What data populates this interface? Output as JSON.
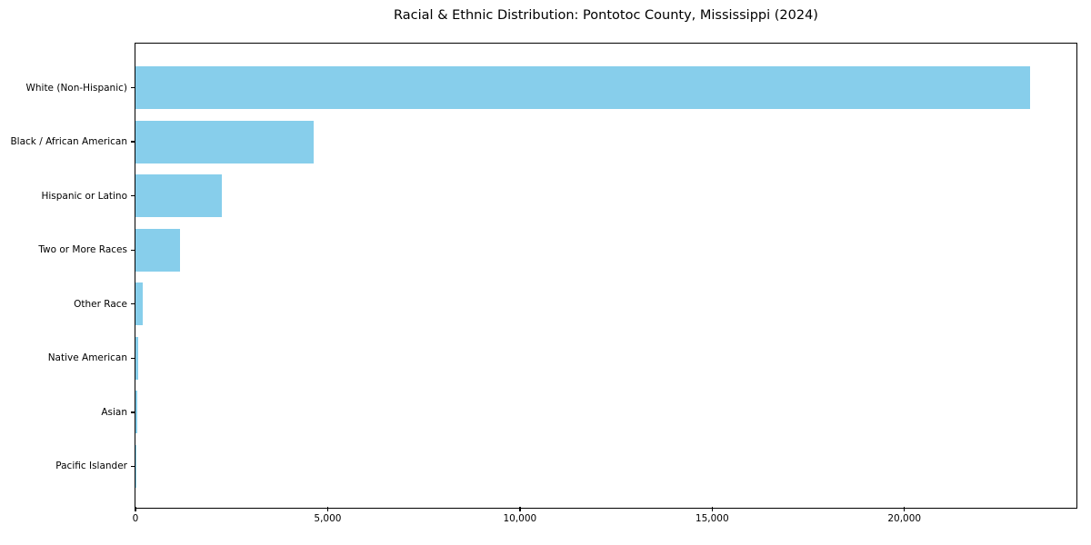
{
  "page": {
    "background": "#ffffff",
    "text_color": "#000000"
  },
  "chart_data": {
    "type": "bar",
    "orientation": "horizontal",
    "title": "Racial & Ethnic Distribution: Pontotoc County, Mississippi (2024)",
    "categories": [
      "White (Non-Hispanic)",
      "Black / African American",
      "Hispanic or Latino",
      "Two or More Races",
      "Other Race",
      "Native American",
      "Asian",
      "Pacific Islander"
    ],
    "values": [
      23250,
      4640,
      2240,
      1150,
      200,
      60,
      40,
      10
    ],
    "xlabel": "",
    "ylabel": "",
    "xlim": [
      0,
      24452
    ],
    "xticks": [
      0,
      5000,
      10000,
      15000,
      20000
    ],
    "xtick_labels": [
      "0",
      "5,000",
      "10,000",
      "15,000",
      "20,000"
    ],
    "bar_color": "#87CEEB",
    "axis_color": "#000000",
    "grid": false,
    "legend": false
  }
}
